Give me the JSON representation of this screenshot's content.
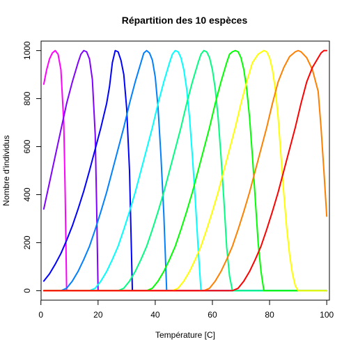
{
  "chart_data": {
    "type": "line",
    "title": "Répartition des 10 espèces",
    "xlabel": "Température [C]",
    "ylabel": "Nombre d'individus",
    "xlim": [
      1,
      100
    ],
    "ylim": [
      0,
      1000
    ],
    "xticks": [
      0,
      20,
      40,
      60,
      80,
      100
    ],
    "yticks": [
      0,
      200,
      400,
      600,
      800,
      1000
    ],
    "grid": false,
    "legend": "none",
    "series": [
      {
        "color": "#FF00FF",
        "points": [
          [
            1,
            860
          ],
          [
            2,
            920
          ],
          [
            3,
            965
          ],
          [
            4,
            990
          ],
          [
            5,
            1000
          ],
          [
            6,
            985
          ],
          [
            7,
            920
          ],
          [
            8,
            700
          ],
          [
            8.5,
            400
          ],
          [
            9,
            0
          ],
          [
            100,
            0
          ]
        ]
      },
      {
        "color": "#8000FF",
        "points": [
          [
            1,
            340
          ],
          [
            3,
            450
          ],
          [
            5,
            560
          ],
          [
            7,
            670
          ],
          [
            9,
            780
          ],
          [
            11,
            870
          ],
          [
            13,
            950
          ],
          [
            14,
            985
          ],
          [
            15,
            1000
          ],
          [
            16,
            995
          ],
          [
            17,
            965
          ],
          [
            18,
            880
          ],
          [
            19,
            650
          ],
          [
            19.5,
            350
          ],
          [
            20,
            0
          ],
          [
            100,
            0
          ]
        ]
      },
      {
        "color": "#0000FF",
        "points": [
          [
            1,
            40
          ],
          [
            3,
            70
          ],
          [
            5,
            110
          ],
          [
            7,
            155
          ],
          [
            9,
            210
          ],
          [
            11,
            270
          ],
          [
            13,
            340
          ],
          [
            15,
            415
          ],
          [
            17,
            500
          ],
          [
            19,
            590
          ],
          [
            21,
            680
          ],
          [
            23,
            780
          ],
          [
            24,
            850
          ],
          [
            25,
            950
          ],
          [
            26,
            1000
          ],
          [
            27,
            995
          ],
          [
            28,
            960
          ],
          [
            29,
            900
          ],
          [
            30,
            760
          ],
          [
            31,
            500
          ],
          [
            31.5,
            250
          ],
          [
            32,
            0
          ],
          [
            100,
            0
          ]
        ]
      },
      {
        "color": "#0080FF",
        "points": [
          [
            1,
            0
          ],
          [
            7,
            0
          ],
          [
            9,
            10
          ],
          [
            11,
            40
          ],
          [
            13,
            80
          ],
          [
            15,
            130
          ],
          [
            17,
            185
          ],
          [
            19,
            255
          ],
          [
            21,
            330
          ],
          [
            23,
            410
          ],
          [
            25,
            500
          ],
          [
            27,
            590
          ],
          [
            29,
            680
          ],
          [
            31,
            780
          ],
          [
            33,
            870
          ],
          [
            35,
            950
          ],
          [
            36,
            990
          ],
          [
            37,
            1000
          ],
          [
            38,
            990
          ],
          [
            39,
            960
          ],
          [
            40,
            890
          ],
          [
            41,
            760
          ],
          [
            42,
            560
          ],
          [
            43,
            320
          ],
          [
            44,
            0
          ],
          [
            100,
            0
          ]
        ]
      },
      {
        "color": "#00FFFF",
        "points": [
          [
            1,
            0
          ],
          [
            17,
            0
          ],
          [
            19,
            10
          ],
          [
            21,
            40
          ],
          [
            23,
            80
          ],
          [
            25,
            130
          ],
          [
            27,
            185
          ],
          [
            29,
            255
          ],
          [
            31,
            330
          ],
          [
            33,
            410
          ],
          [
            35,
            500
          ],
          [
            37,
            590
          ],
          [
            39,
            680
          ],
          [
            41,
            780
          ],
          [
            43,
            870
          ],
          [
            45,
            950
          ],
          [
            46,
            985
          ],
          [
            47,
            1000
          ],
          [
            48,
            995
          ],
          [
            49,
            970
          ],
          [
            50,
            920
          ],
          [
            51,
            840
          ],
          [
            52,
            720
          ],
          [
            53,
            560
          ],
          [
            54,
            380
          ],
          [
            55,
            180
          ],
          [
            56,
            0
          ],
          [
            100,
            0
          ]
        ]
      },
      {
        "color": "#00FF80",
        "points": [
          [
            1,
            0
          ],
          [
            27,
            0
          ],
          [
            29,
            10
          ],
          [
            31,
            40
          ],
          [
            33,
            80
          ],
          [
            35,
            130
          ],
          [
            37,
            185
          ],
          [
            39,
            255
          ],
          [
            41,
            330
          ],
          [
            43,
            410
          ],
          [
            45,
            500
          ],
          [
            47,
            590
          ],
          [
            49,
            680
          ],
          [
            51,
            780
          ],
          [
            53,
            870
          ],
          [
            55,
            950
          ],
          [
            56,
            985
          ],
          [
            57,
            1000
          ],
          [
            58,
            995
          ],
          [
            59,
            970
          ],
          [
            60,
            920
          ],
          [
            61,
            840
          ],
          [
            62,
            720
          ],
          [
            63,
            560
          ],
          [
            64,
            380
          ],
          [
            65,
            180
          ],
          [
            66,
            60
          ],
          [
            67,
            0
          ],
          [
            100,
            0
          ]
        ]
      },
      {
        "color": "#00FF00",
        "points": [
          [
            1,
            0
          ],
          [
            37,
            0
          ],
          [
            39,
            10
          ],
          [
            41,
            40
          ],
          [
            43,
            80
          ],
          [
            45,
            130
          ],
          [
            47,
            185
          ],
          [
            49,
            255
          ],
          [
            51,
            330
          ],
          [
            53,
            410
          ],
          [
            55,
            500
          ],
          [
            57,
            590
          ],
          [
            59,
            680
          ],
          [
            61,
            780
          ],
          [
            63,
            870
          ],
          [
            65,
            950
          ],
          [
            66,
            985
          ],
          [
            67,
            995
          ],
          [
            68,
            1000
          ],
          [
            69,
            995
          ],
          [
            70,
            970
          ],
          [
            71,
            920
          ],
          [
            72,
            840
          ],
          [
            73,
            720
          ],
          [
            74,
            560
          ],
          [
            75,
            380
          ],
          [
            76,
            200
          ],
          [
            77,
            80
          ],
          [
            78,
            0
          ],
          [
            100,
            0
          ]
        ]
      },
      {
        "color": "#FFFF00",
        "points": [
          [
            1,
            0
          ],
          [
            46,
            0
          ],
          [
            48,
            10
          ],
          [
            50,
            40
          ],
          [
            52,
            80
          ],
          [
            54,
            130
          ],
          [
            56,
            185
          ],
          [
            58,
            255
          ],
          [
            60,
            330
          ],
          [
            62,
            410
          ],
          [
            64,
            500
          ],
          [
            66,
            590
          ],
          [
            68,
            680
          ],
          [
            70,
            780
          ],
          [
            72,
            870
          ],
          [
            74,
            950
          ],
          [
            76,
            985
          ],
          [
            78,
            1000
          ],
          [
            79,
            995
          ],
          [
            80,
            970
          ],
          [
            81,
            920
          ],
          [
            82,
            840
          ],
          [
            83,
            720
          ],
          [
            84,
            560
          ],
          [
            85,
            400
          ],
          [
            86,
            260
          ],
          [
            87,
            150
          ],
          [
            88,
            70
          ],
          [
            89,
            20
          ],
          [
            90,
            0
          ],
          [
            100,
            0
          ]
        ]
      },
      {
        "color": "#FF8000",
        "points": [
          [
            1,
            0
          ],
          [
            57,
            0
          ],
          [
            59,
            10
          ],
          [
            61,
            40
          ],
          [
            63,
            80
          ],
          [
            65,
            130
          ],
          [
            67,
            185
          ],
          [
            69,
            255
          ],
          [
            71,
            330
          ],
          [
            73,
            410
          ],
          [
            75,
            500
          ],
          [
            77,
            590
          ],
          [
            79,
            680
          ],
          [
            81,
            780
          ],
          [
            83,
            870
          ],
          [
            85,
            930
          ],
          [
            87,
            975
          ],
          [
            89,
            995
          ],
          [
            90,
            1000
          ],
          [
            91,
            995
          ],
          [
            93,
            970
          ],
          [
            95,
            920
          ],
          [
            97,
            830
          ],
          [
            98,
            680
          ],
          [
            99,
            500
          ],
          [
            100,
            310
          ]
        ]
      },
      {
        "color": "#FF0000",
        "points": [
          [
            1,
            0
          ],
          [
            67,
            0
          ],
          [
            69,
            10
          ],
          [
            71,
            40
          ],
          [
            73,
            80
          ],
          [
            75,
            130
          ],
          [
            77,
            185
          ],
          [
            79,
            255
          ],
          [
            81,
            330
          ],
          [
            83,
            410
          ],
          [
            85,
            500
          ],
          [
            87,
            590
          ],
          [
            89,
            680
          ],
          [
            91,
            780
          ],
          [
            93,
            870
          ],
          [
            95,
            930
          ],
          [
            97,
            970
          ],
          [
            98,
            990
          ],
          [
            99,
            1000
          ],
          [
            100,
            1000
          ]
        ]
      }
    ]
  }
}
